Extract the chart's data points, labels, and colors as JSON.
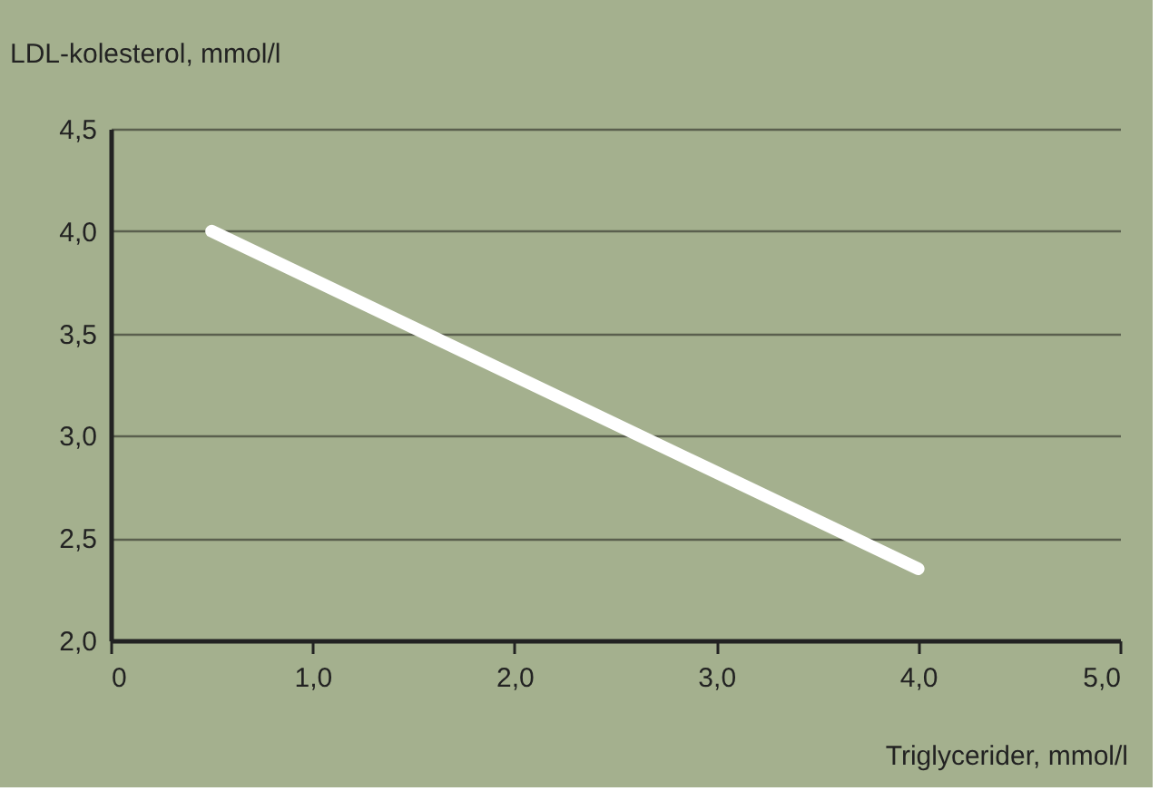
{
  "chart_data": {
    "type": "line",
    "xlabel": "Triglycerider, mmol/l",
    "ylabel": "LDL-kolesterol, mmol/l",
    "x": [
      0.5,
      4.0
    ],
    "series": [
      {
        "color": "#ffffff",
        "values": [
          4.0,
          2.35
        ]
      }
    ],
    "xlim": [
      0,
      5
    ],
    "ylim": [
      2.0,
      4.5
    ],
    "xticks": [
      0,
      {
        "value": 1,
        "label": "1,0"
      },
      {
        "value": 2,
        "label": "2,0"
      },
      {
        "value": 3,
        "label": "3,0"
      },
      {
        "value": 4,
        "label": "4,0"
      },
      {
        "value": 5,
        "label": "5,0"
      }
    ],
    "yticks": [
      {
        "value": 2,
        "label": "2,0"
      },
      {
        "value": 2.5,
        "label": "2,5"
      },
      {
        "value": 3,
        "label": "3,0"
      },
      {
        "value": 3.5,
        "label": "3,5"
      },
      {
        "value": 4,
        "label": "4,0"
      },
      {
        "value": 4.5,
        "label": "4,5"
      }
    ],
    "grid": "y",
    "line_style": "solid"
  }
}
